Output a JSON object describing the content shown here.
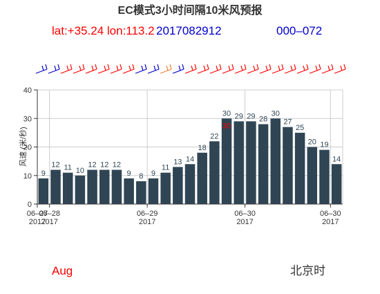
{
  "header": {
    "title": "EC模式3小时间隔10米风预报",
    "coords": "lat:+35.24 lon:113.2",
    "init_time": "2017082912",
    "range": "000–072"
  },
  "footer": {
    "month": "Aug",
    "timezone": "北京时"
  },
  "colors": {
    "bar": "#2f4554",
    "axis": "#333333",
    "grid": "#cccccc",
    "barb_blue": "#0000cc",
    "barb_orange": "#f08030",
    "barb_red": "#ff0000",
    "highlight_label": "#ff0000"
  },
  "chart_data": {
    "type": "bar",
    "title": "EC模式3小时间隔10米风预报",
    "ylabel": "风速 (米/秒)",
    "ylim": [
      0,
      40
    ],
    "yticks": [
      0,
      10,
      20,
      30,
      40
    ],
    "x_ticks": [
      {
        "line1": "06–27",
        "line2": "2017",
        "at": 0
      },
      {
        "line1": "06–28",
        "line2": "2017",
        "at": 1
      },
      {
        "line1": "06–29",
        "line2": "2017",
        "at": 9
      },
      {
        "line1": "06–30",
        "line2": "2017",
        "at": 17
      },
      {
        "line1": "06–30",
        "line2": "2017",
        "at": 24
      }
    ],
    "grid": true,
    "values": [
      9,
      12,
      11,
      10,
      12,
      12,
      12,
      9,
      8,
      9,
      11,
      13,
      14,
      18,
      22,
      30,
      29,
      29,
      28,
      30,
      27,
      25,
      20,
      19,
      14
    ],
    "highlight": {
      "index": 15,
      "value": 30
    },
    "wind_barb_colors": [
      "blue",
      "blue",
      "red",
      "red",
      "red",
      "red",
      "red",
      "red",
      "blue",
      "blue",
      "orange",
      "blue",
      "red",
      "red",
      "red",
      "red",
      "red",
      "red",
      "red",
      "red",
      "red",
      "red",
      "red",
      "red",
      "red"
    ]
  }
}
